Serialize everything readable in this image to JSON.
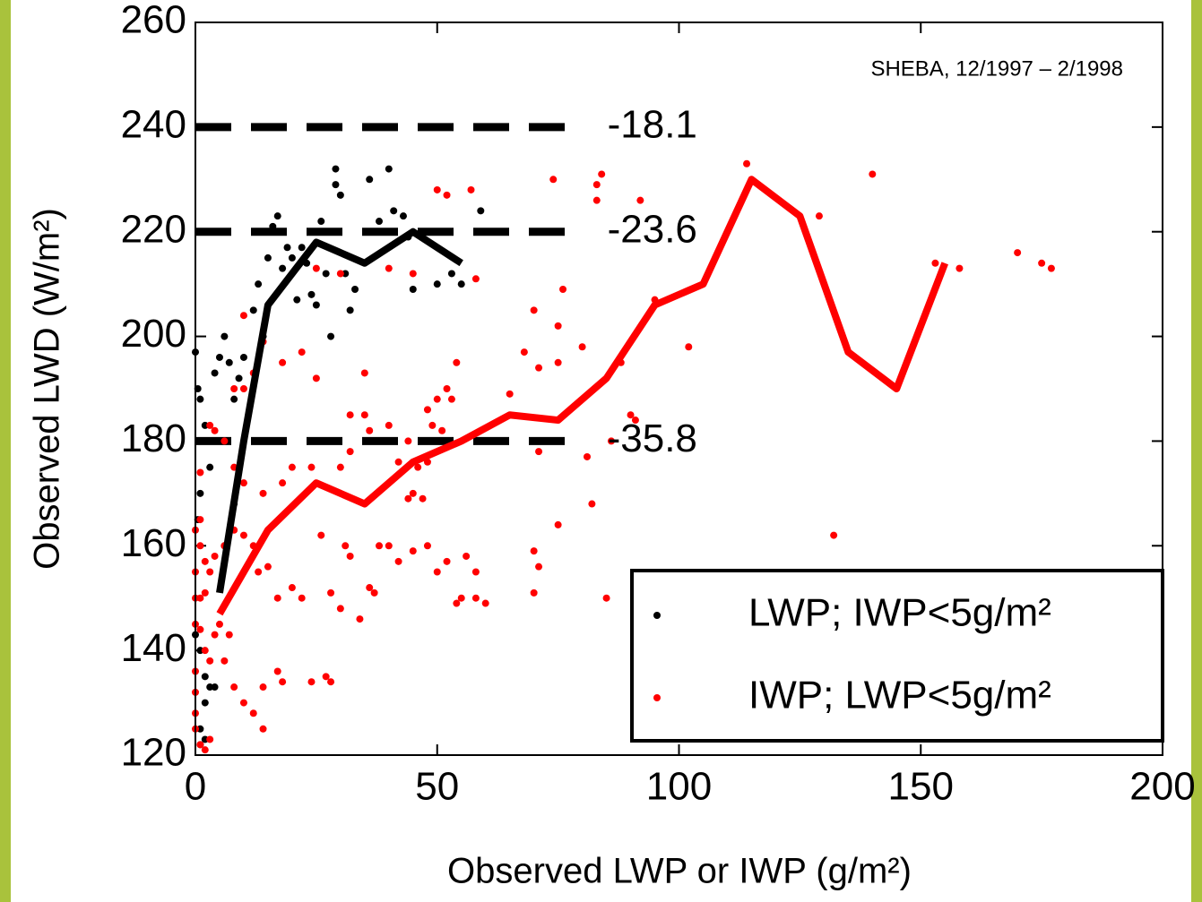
{
  "chart_data": {
    "type": "scatter",
    "annotation": "SHEBA, 12/1997 – 2/1998",
    "x_label": "Observed LWP or IWP (g/m²)",
    "y_label": "Observed LWD (W/m²)",
    "xlim": [
      0,
      200
    ],
    "ylim": [
      120,
      260
    ],
    "xticks": [
      0,
      50,
      100,
      150,
      200
    ],
    "yticks": [
      120,
      140,
      160,
      180,
      200,
      220,
      240,
      260
    ],
    "legend": "lower right",
    "reference_lines": [
      {
        "y": 240,
        "x_end": 80,
        "label": "-18.1"
      },
      {
        "y": 220,
        "x_end": 80,
        "label": "-23.6"
      },
      {
        "y": 180,
        "x_end": 80,
        "label": "-35.8"
      }
    ],
    "series": [
      {
        "name": "LWP; IWP<5g/m²",
        "color": "#000000",
        "x": [
          0,
          0.5,
          1,
          1,
          0.5,
          0,
          1,
          2,
          2,
          1,
          3,
          4,
          1,
          2,
          3,
          2,
          4,
          5,
          6,
          7,
          8,
          9,
          10,
          12,
          13,
          14,
          15,
          16,
          17,
          18,
          19,
          20,
          21,
          22,
          23,
          24,
          25,
          26,
          27,
          28,
          29,
          30,
          29,
          31,
          32,
          33,
          36,
          38,
          40,
          41,
          43,
          44,
          45,
          50,
          53,
          55,
          59,
          28,
          8,
          6
        ],
        "y": [
          197,
          190,
          188,
          170,
          165,
          143,
          140,
          135,
          130,
          125,
          133,
          133,
          122,
          123,
          175,
          183,
          193,
          196,
          200,
          195,
          188,
          192,
          196,
          205,
          210,
          200,
          215,
          221,
          223,
          213,
          217,
          215,
          207,
          217,
          214,
          208,
          206,
          222,
          212,
          220,
          229,
          227,
          232,
          212,
          205,
          209,
          230,
          222,
          232,
          224,
          223,
          219,
          209,
          210,
          212,
          210,
          224,
          200,
          168,
          160
        ],
        "mean_x": [
          5,
          10,
          15,
          20,
          25,
          35,
          45,
          55
        ],
        "mean_y": [
          151,
          180,
          206,
          212,
          218,
          214,
          220,
          214
        ]
      },
      {
        "name": "IWP; LWP<5g/m²",
        "color": "#ff0000",
        "x": [
          10,
          25,
          30,
          40,
          45,
          50,
          52,
          57,
          58,
          74,
          83,
          84,
          83,
          92,
          114,
          140,
          129,
          153,
          158,
          170,
          175,
          177,
          102,
          95,
          76,
          70,
          75,
          80,
          65,
          68,
          71,
          75,
          88,
          90,
          91,
          86,
          81,
          82,
          75,
          71,
          54,
          52,
          53,
          50,
          48,
          49,
          51,
          48,
          46,
          45,
          44,
          42,
          40,
          36,
          32,
          30,
          24,
          20,
          18,
          14,
          10,
          8,
          6,
          4,
          3,
          32,
          35,
          25,
          22,
          18,
          14,
          12,
          10,
          8,
          35,
          40,
          42,
          45,
          48,
          50,
          52,
          55,
          56,
          58,
          58,
          60,
          54,
          44,
          47,
          38,
          36,
          32,
          31,
          30,
          28,
          26,
          22,
          20,
          17,
          15,
          13,
          12,
          10,
          8,
          6,
          4,
          3,
          2,
          1,
          1,
          0,
          0,
          0,
          1,
          2,
          3,
          4,
          5,
          6,
          7,
          8,
          10,
          12,
          14,
          3,
          2,
          1,
          0,
          0,
          0,
          0,
          0,
          1,
          1,
          2,
          27,
          24,
          18,
          14,
          17,
          70,
          71,
          70,
          85,
          132,
          28,
          34,
          37
        ],
        "y": [
          204,
          213,
          212,
          213,
          212,
          228,
          227,
          228,
          211,
          230,
          229,
          231,
          226,
          226,
          233,
          231,
          223,
          214,
          213,
          216,
          214,
          213,
          198,
          207,
          209,
          205,
          202,
          198,
          189,
          197,
          194,
          195,
          195,
          185,
          184,
          180,
          177,
          168,
          164,
          178,
          195,
          190,
          188,
          188,
          186,
          183,
          182,
          176,
          175,
          170,
          180,
          176,
          183,
          182,
          178,
          175,
          175,
          175,
          172,
          170,
          172,
          175,
          180,
          182,
          183,
          185,
          185,
          192,
          197,
          195,
          199,
          193,
          190,
          190,
          193,
          160,
          157,
          159,
          160,
          155,
          157,
          150,
          158,
          155,
          150,
          149,
          149,
          169,
          169,
          160,
          152,
          158,
          160,
          148,
          151,
          162,
          150,
          152,
          150,
          156,
          155,
          160,
          162,
          163,
          160,
          158,
          155,
          151,
          160,
          150,
          150,
          155,
          145,
          144,
          140,
          138,
          143,
          145,
          138,
          143,
          133,
          130,
          128,
          125,
          123,
          121,
          122,
          125,
          128,
          132,
          136,
          163,
          174,
          165,
          157,
          135,
          134,
          134,
          133,
          136,
          159,
          156,
          151,
          150,
          162,
          134,
          146,
          151
        ],
        "mean_x": [
          5,
          10,
          15,
          25,
          35,
          45,
          55,
          65,
          75,
          85,
          95,
          105,
          115,
          125,
          135,
          145,
          155
        ],
        "mean_y": [
          147,
          155,
          163,
          172,
          168,
          176,
          180,
          185,
          184,
          192,
          206,
          210,
          230,
          223,
          197,
          190,
          214
        ]
      }
    ]
  }
}
